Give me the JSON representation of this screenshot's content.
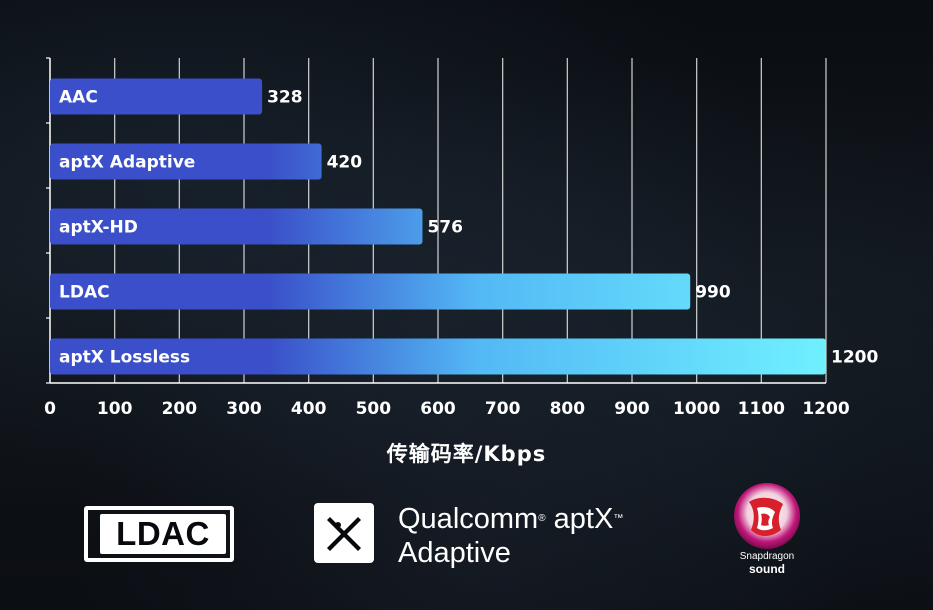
{
  "chart_data": {
    "type": "bar",
    "orientation": "horizontal",
    "categories": [
      "AAC",
      "aptX Adaptive",
      "aptX-HD",
      "LDAC",
      "aptX Lossless"
    ],
    "values": [
      328,
      420,
      576,
      990,
      1200
    ],
    "xlabel": "传输码率/Kbps",
    "xlim": [
      0,
      1200
    ],
    "xticks": [
      0,
      100,
      200,
      300,
      400,
      500,
      600,
      700,
      800,
      900,
      1000,
      1100,
      1200
    ],
    "grid": "vertical",
    "colors": {
      "bar_start": "#3a4fc9",
      "bar_end": "#6ff0ff",
      "grid": "#ffffff",
      "axis": "#ffffff"
    }
  },
  "logos": {
    "ldac": "LDAC",
    "qualcomm_line1": "Qualcomm",
    "qualcomm_line1b": "aptX",
    "qualcomm_line2": "Adaptive",
    "snapdragon_line1": "Snapdragon",
    "snapdragon_line2": "sound"
  },
  "icons": {
    "aptx_mark": "aptx-x-icon",
    "snapdragon_mark": "snapdragon-dragon-icon"
  }
}
